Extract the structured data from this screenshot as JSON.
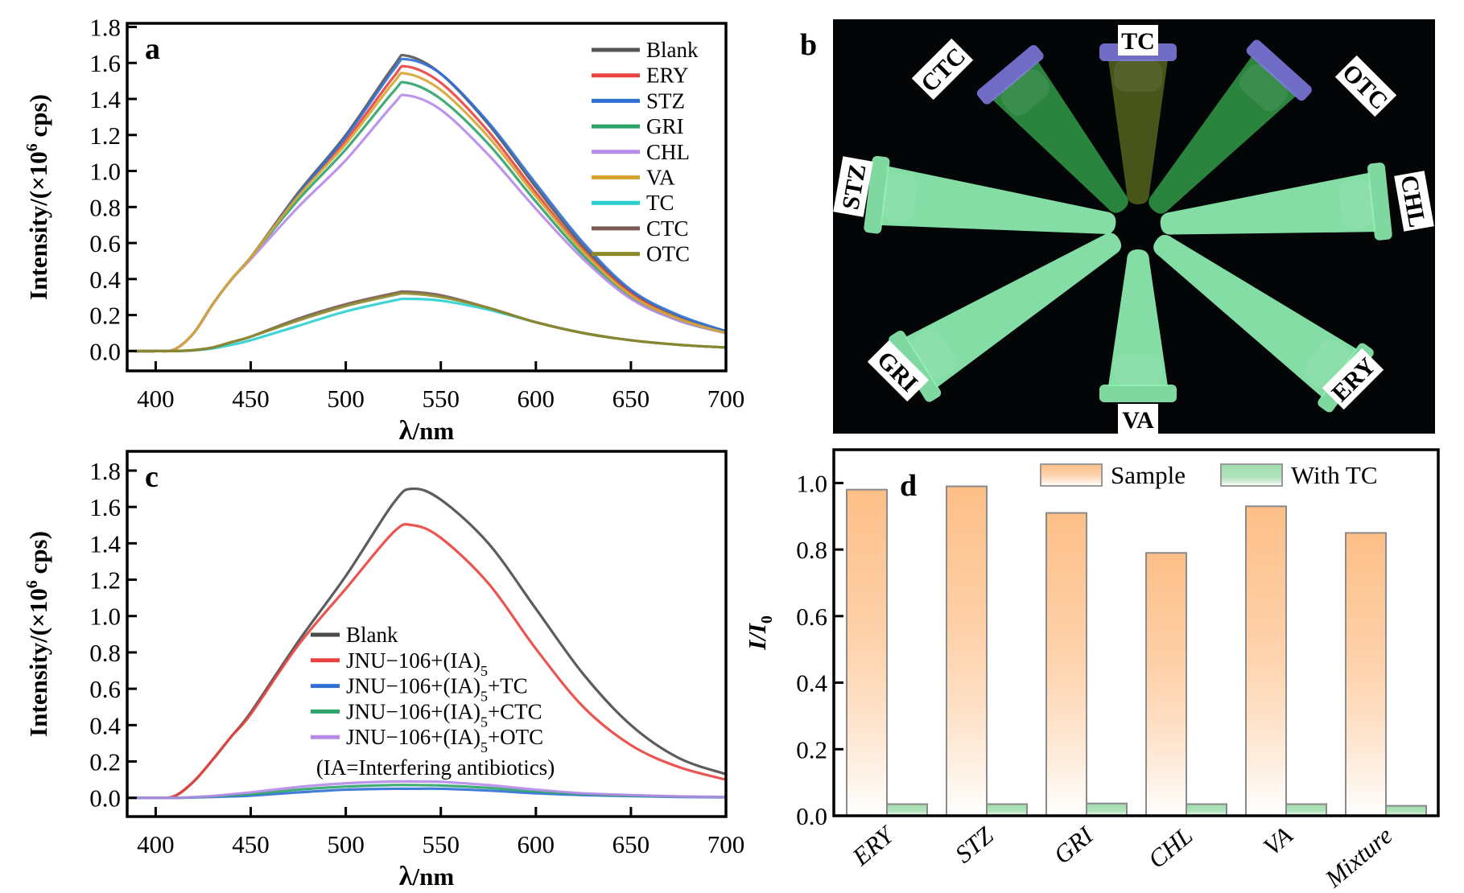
{
  "chart_data": [
    {
      "panel": "a",
      "type": "line",
      "xlabel_symbol": "λ",
      "xlabel_unit": "/nm",
      "ylabel_pre": "Intensity/(×10",
      "ylabel_sup": "6",
      "ylabel_post": " cps)",
      "xlim": [
        385,
        700
      ],
      "ylim": [
        -0.11,
        1.82
      ],
      "xticks": [
        "400",
        "450",
        "500",
        "550",
        "600",
        "650",
        "700"
      ],
      "yticks": [
        "0.0",
        "0.2",
        "0.4",
        "0.6",
        "0.8",
        "1.0",
        "1.2",
        "1.4",
        "1.6",
        "1.8"
      ],
      "legend_position": "top-right",
      "x": [
        385,
        400,
        410,
        420,
        430,
        440,
        450,
        475,
        500,
        525,
        532,
        550,
        575,
        600,
        625,
        650,
        675,
        700
      ],
      "series": [
        {
          "name": "Blank",
          "color": "#555555",
          "values": [
            0,
            0,
            0.01,
            0.1,
            0.26,
            0.4,
            0.52,
            0.88,
            1.2,
            1.58,
            1.64,
            1.54,
            1.26,
            0.91,
            0.58,
            0.33,
            0.19,
            0.11
          ]
        },
        {
          "name": "ERY",
          "color": "#e8433f",
          "values": [
            0,
            0,
            0.01,
            0.1,
            0.26,
            0.4,
            0.52,
            0.87,
            1.17,
            1.52,
            1.58,
            1.49,
            1.22,
            0.88,
            0.56,
            0.32,
            0.18,
            0.1
          ]
        },
        {
          "name": "STZ",
          "color": "#2f6fd6",
          "values": [
            0,
            0,
            0.01,
            0.1,
            0.26,
            0.4,
            0.52,
            0.87,
            1.19,
            1.56,
            1.62,
            1.54,
            1.27,
            0.93,
            0.6,
            0.34,
            0.2,
            0.11
          ]
        },
        {
          "name": "GRI",
          "color": "#2ea36a",
          "values": [
            0,
            0,
            0.01,
            0.1,
            0.26,
            0.4,
            0.52,
            0.84,
            1.12,
            1.44,
            1.49,
            1.4,
            1.15,
            0.83,
            0.53,
            0.3,
            0.17,
            0.1
          ]
        },
        {
          "name": "CHL",
          "color": "#b68ae8",
          "values": [
            0,
            0,
            0.01,
            0.1,
            0.26,
            0.4,
            0.51,
            0.8,
            1.06,
            1.37,
            1.42,
            1.34,
            1.09,
            0.79,
            0.51,
            0.29,
            0.17,
            0.1
          ]
        },
        {
          "name": "VA",
          "color": "#d6a531",
          "values": [
            0,
            0,
            0.01,
            0.1,
            0.26,
            0.4,
            0.52,
            0.86,
            1.15,
            1.49,
            1.54,
            1.45,
            1.19,
            0.86,
            0.55,
            0.31,
            0.18,
            0.1
          ]
        },
        {
          "name": "TC",
          "color": "#2bcfd2",
          "values": [
            0,
            0,
            0,
            0.004,
            0.015,
            0.035,
            0.06,
            0.14,
            0.22,
            0.28,
            0.29,
            0.28,
            0.23,
            0.16,
            0.1,
            0.06,
            0.035,
            0.02
          ]
        },
        {
          "name": "CTC",
          "color": "#7a5a55",
          "values": [
            0,
            0,
            0,
            0.005,
            0.02,
            0.05,
            0.08,
            0.18,
            0.26,
            0.32,
            0.33,
            0.31,
            0.24,
            0.16,
            0.1,
            0.06,
            0.035,
            0.02
          ]
        },
        {
          "name": "OTC",
          "color": "#8c8a2a",
          "values": [
            0,
            0,
            0,
            0.005,
            0.02,
            0.05,
            0.08,
            0.17,
            0.25,
            0.31,
            0.32,
            0.3,
            0.24,
            0.16,
            0.1,
            0.06,
            0.035,
            0.02
          ]
        }
      ]
    },
    {
      "panel": "c",
      "type": "line",
      "xlabel_symbol": "λ",
      "xlabel_unit": "/nm",
      "ylabel_pre": "Intensity/(×10",
      "ylabel_sup": "6",
      "ylabel_post": " cps)",
      "xlim": [
        385,
        700
      ],
      "ylim": [
        -0.103,
        1.906
      ],
      "xticks": [
        "400",
        "450",
        "500",
        "550",
        "600",
        "650",
        "700"
      ],
      "yticks": [
        "0.0",
        "0.2",
        "0.4",
        "0.6",
        "0.8",
        "1.0",
        "1.2",
        "1.4",
        "1.6",
        "1.8"
      ],
      "legend_position": "center",
      "note": "(IA=Interfering antibiotics)",
      "x": [
        385,
        400,
        410,
        420,
        430,
        440,
        450,
        475,
        500,
        525,
        535,
        550,
        575,
        600,
        625,
        650,
        675,
        700
      ],
      "series": [
        {
          "name": "Blank",
          "label_pre": "Blank",
          "label_sub": "",
          "label_post": "",
          "color": "#4a4a4a",
          "values": [
            0,
            0,
            0.01,
            0.09,
            0.21,
            0.34,
            0.47,
            0.86,
            1.22,
            1.62,
            1.7,
            1.64,
            1.4,
            1.04,
            0.68,
            0.4,
            0.22,
            0.13
          ]
        },
        {
          "name": "JNU-106+(IA)5",
          "label_pre": "JNU−106+(IA)",
          "label_sub": "5",
          "label_post": "",
          "color": "#e8433f",
          "values": [
            0,
            0,
            0.01,
            0.09,
            0.21,
            0.34,
            0.46,
            0.84,
            1.15,
            1.46,
            1.5,
            1.43,
            1.18,
            0.82,
            0.5,
            0.29,
            0.17,
            0.1
          ]
        },
        {
          "name": "JNU-106+(IA)5+TC",
          "label_pre": "JNU−106+(IA)",
          "label_sub": "5",
          "label_post": "+TC",
          "color": "#2f6fd6",
          "values": [
            0,
            0,
            0,
            0.002,
            0.005,
            0.008,
            0.012,
            0.03,
            0.045,
            0.05,
            0.05,
            0.05,
            0.04,
            0.025,
            0.015,
            0.01,
            0.005,
            0.003
          ]
        },
        {
          "name": "JNU-106+(IA)5+CTC",
          "label_pre": "JNU−106+(IA)",
          "label_sub": "5",
          "label_post": "+CTC",
          "color": "#2ea36a",
          "values": [
            0,
            0,
            0,
            0.003,
            0.008,
            0.014,
            0.02,
            0.045,
            0.062,
            0.07,
            0.07,
            0.068,
            0.055,
            0.035,
            0.02,
            0.012,
            0.007,
            0.004
          ]
        },
        {
          "name": "JNU-106+(IA)5+OTC",
          "label_pre": "JNU−106+(IA)",
          "label_sub": "5",
          "label_post": "+OTC",
          "color": "#b68ae8",
          "values": [
            0,
            0,
            0,
            0.004,
            0.01,
            0.02,
            0.03,
            0.06,
            0.08,
            0.09,
            0.09,
            0.088,
            0.07,
            0.045,
            0.025,
            0.015,
            0.008,
            0.005
          ]
        }
      ]
    },
    {
      "panel": "d",
      "type": "bar",
      "ylabel_i": "I",
      "ylabel_slash": "/",
      "ylabel_i0": "I",
      "ylabel_sub": "0",
      "ylim": [
        0,
        1.1
      ],
      "yticks": [
        "0.0",
        "0.2",
        "0.4",
        "0.6",
        "0.8",
        "1.0"
      ],
      "legend_position": "top-right",
      "categories": [
        "ERY",
        "STZ",
        "GRI",
        "CHL",
        "VA",
        "Mixture"
      ],
      "series": [
        {
          "name": "Sample",
          "color": "#fdbf88",
          "values": [
            0.98,
            0.99,
            0.91,
            0.79,
            0.93,
            0.85
          ]
        },
        {
          "name": "With TC",
          "color": "#9fdcab",
          "values": [
            0.035,
            0.035,
            0.037,
            0.035,
            0.035,
            0.03
          ]
        }
      ]
    }
  ],
  "panels": {
    "a": "a",
    "b": "b",
    "c": "c",
    "d": "d"
  },
  "photo": {
    "tubes": [
      {
        "label": "TC",
        "fluorescence": "dim"
      },
      {
        "label": "CTC",
        "fluorescence": "dim"
      },
      {
        "label": "OTC",
        "fluorescence": "dim"
      },
      {
        "label": "STZ",
        "fluorescence": "bright"
      },
      {
        "label": "CHL",
        "fluorescence": "bright"
      },
      {
        "label": "GRI",
        "fluorescence": "bright"
      },
      {
        "label": "VA",
        "fluorescence": "bright"
      },
      {
        "label": "ERY",
        "fluorescence": "bright"
      }
    ],
    "colors": {
      "bright": "#8ef0b2",
      "dim": "#2e8f42",
      "tc": "#4d5b1c",
      "cap": "#7c78dc"
    }
  }
}
